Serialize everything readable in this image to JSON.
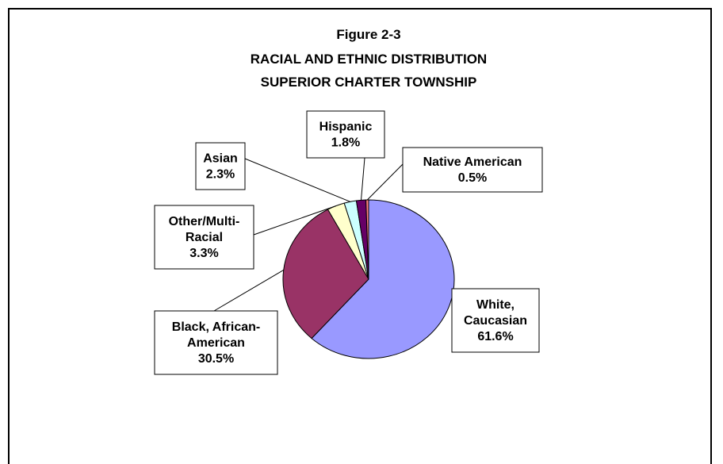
{
  "chart_data": {
    "type": "pie",
    "title": [
      "Figure 2-3",
      "RACIAL AND ETHNIC DISTRIBUTION",
      "SUPERIOR CHARTER TOWNSHIP"
    ],
    "slices": [
      {
        "label": [
          "White,",
          "Caucasian"
        ],
        "value": 61.6,
        "value_label": "61.6%",
        "color": "#9999ff"
      },
      {
        "label": [
          "Black, African-",
          "American"
        ],
        "value": 30.5,
        "value_label": "30.5%",
        "color": "#993366"
      },
      {
        "label": [
          "Other/Multi-",
          "Racial"
        ],
        "value": 3.3,
        "value_label": "3.3%",
        "color": "#ffffcc"
      },
      {
        "label": [
          "Asian"
        ],
        "value": 2.3,
        "value_label": "2.3%",
        "color": "#ccffff"
      },
      {
        "label": [
          "Hispanic"
        ],
        "value": 1.8,
        "value_label": "1.8%",
        "color": "#660066"
      },
      {
        "label": [
          "Native American"
        ],
        "value": 0.5,
        "value_label": "0.5%",
        "color": "#ff8080"
      }
    ],
    "legend": "none",
    "data_labels": "outside-boxed"
  }
}
